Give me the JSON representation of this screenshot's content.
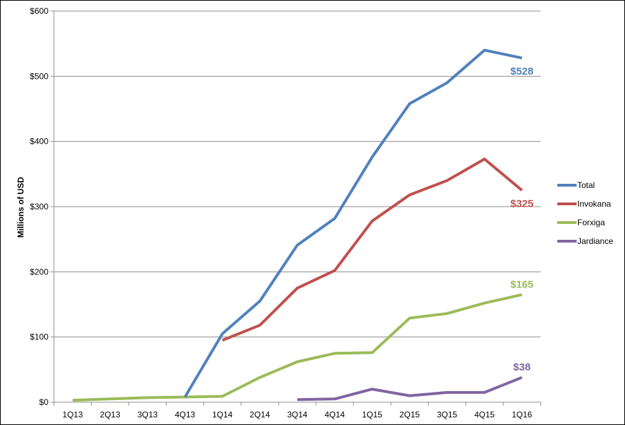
{
  "chart_data": {
    "type": "line",
    "title": "",
    "xlabel": "",
    "ylabel": "Millions of USD",
    "categories": [
      "1Q13",
      "2Q13",
      "3Q13",
      "4Q13",
      "1Q14",
      "2Q14",
      "3Q14",
      "4Q14",
      "1Q15",
      "2Q15",
      "3Q15",
      "4Q15",
      "1Q16"
    ],
    "ylim": [
      0,
      600
    ],
    "yticks": [
      0,
      100,
      200,
      300,
      400,
      500,
      600
    ],
    "ytick_labels": [
      "$0",
      "$100",
      "$200",
      "$300",
      "$400",
      "$500",
      "$600"
    ],
    "grid": true,
    "legend_position": "right",
    "series": [
      {
        "name": "Total",
        "color": "#4f81bd",
        "values": [
          null,
          null,
          null,
          8,
          105,
          155,
          241,
          282,
          376,
          458,
          490,
          540,
          528
        ],
        "end_label": "$528"
      },
      {
        "name": "Invokana",
        "color": "#c0504d",
        "values": [
          null,
          null,
          null,
          null,
          95,
          118,
          175,
          202,
          278,
          318,
          340,
          373,
          325
        ],
        "end_label": "$325"
      },
      {
        "name": "Forxiga",
        "color": "#9bbb59",
        "values": [
          3,
          5,
          7,
          8,
          9,
          38,
          62,
          75,
          76,
          129,
          136,
          152,
          165
        ],
        "end_label": "$165"
      },
      {
        "name": "Jardiance",
        "color": "#8064a2",
        "values": [
          null,
          null,
          null,
          null,
          null,
          null,
          4,
          5,
          20,
          10,
          15,
          15,
          38
        ],
        "end_label": "$38"
      }
    ]
  }
}
